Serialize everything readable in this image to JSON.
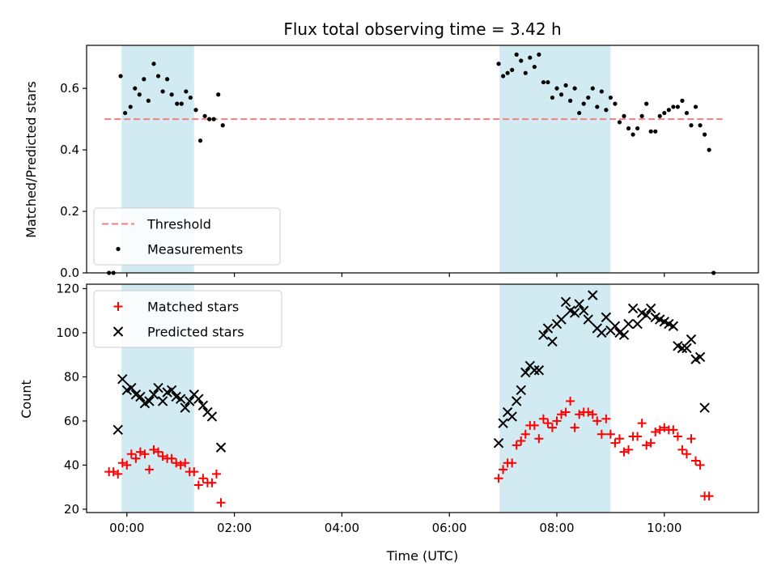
{
  "chart_data": [
    {
      "type": "scatter",
      "title": "Flux total observing time = 3.42 h",
      "xlabel": "",
      "ylabel": "Matched/Predicted stars",
      "x_unit": "UTC time",
      "xlim": [
        "23:15",
        "11:45"
      ],
      "ylim": [
        0,
        0.74
      ],
      "yticks": [
        0.0,
        0.2,
        0.4,
        0.6
      ],
      "ytick_labels": [
        "0.0",
        "0.2",
        "0.4",
        "0.6"
      ],
      "xticks": [
        "00:00",
        "02:00",
        "04:00",
        "06:00",
        "08:00",
        "10:00"
      ],
      "shaded_regions": [
        [
          "23:54",
          "01:15"
        ],
        [
          "06:56",
          "09:00"
        ]
      ],
      "shade_color": "#add8e6",
      "legend": "lower-left",
      "threshold": {
        "name": "Threshold",
        "value": 0.5,
        "x_range": [
          "23:35",
          "11:05"
        ],
        "color": "#f08080"
      },
      "series": [
        {
          "name": "Measurements",
          "color": "#000000",
          "marker": "dot",
          "points": [
            [
              "23:40",
              0.0
            ],
            [
              "23:45",
              0.0
            ],
            [
              "23:53",
              0.64
            ],
            [
              "23:58",
              0.52
            ],
            [
              "00:04",
              0.54
            ],
            [
              "00:09",
              0.6
            ],
            [
              "00:14",
              0.58
            ],
            [
              "00:19",
              0.63
            ],
            [
              "00:24",
              0.56
            ],
            [
              "00:30",
              0.68
            ],
            [
              "00:35",
              0.64
            ],
            [
              "00:40",
              0.59
            ],
            [
              "00:45",
              0.63
            ],
            [
              "00:50",
              0.58
            ],
            [
              "00:56",
              0.55
            ],
            [
              "01:01",
              0.55
            ],
            [
              "01:06",
              0.59
            ],
            [
              "01:11",
              0.57
            ],
            [
              "01:17",
              0.53
            ],
            [
              "01:22",
              0.43
            ],
            [
              "01:27",
              0.51
            ],
            [
              "01:32",
              0.5
            ],
            [
              "01:37",
              0.5
            ],
            [
              "01:42",
              0.58
            ],
            [
              "01:47",
              0.48
            ],
            [
              "06:55",
              0.68
            ],
            [
              "07:00",
              0.64
            ],
            [
              "07:05",
              0.65
            ],
            [
              "07:10",
              0.66
            ],
            [
              "07:15",
              0.71
            ],
            [
              "07:20",
              0.69
            ],
            [
              "07:25",
              0.65
            ],
            [
              "07:30",
              0.7
            ],
            [
              "07:35",
              0.67
            ],
            [
              "07:40",
              0.71
            ],
            [
              "07:45",
              0.62
            ],
            [
              "07:50",
              0.62
            ],
            [
              "07:55",
              0.57
            ],
            [
              "08:00",
              0.6
            ],
            [
              "08:05",
              0.58
            ],
            [
              "08:10",
              0.61
            ],
            [
              "08:15",
              0.56
            ],
            [
              "08:20",
              0.6
            ],
            [
              "08:25",
              0.52
            ],
            [
              "08:30",
              0.55
            ],
            [
              "08:35",
              0.57
            ],
            [
              "08:40",
              0.6
            ],
            [
              "08:45",
              0.54
            ],
            [
              "08:50",
              0.59
            ],
            [
              "08:55",
              0.53
            ],
            [
              "09:00",
              0.57
            ],
            [
              "09:05",
              0.55
            ],
            [
              "09:10",
              0.49
            ],
            [
              "09:15",
              0.51
            ],
            [
              "09:20",
              0.47
            ],
            [
              "09:25",
              0.45
            ],
            [
              "09:30",
              0.47
            ],
            [
              "09:35",
              0.51
            ],
            [
              "09:40",
              0.55
            ],
            [
              "09:45",
              0.46
            ],
            [
              "09:50",
              0.46
            ],
            [
              "09:55",
              0.51
            ],
            [
              "10:00",
              0.52
            ],
            [
              "10:05",
              0.53
            ],
            [
              "10:10",
              0.54
            ],
            [
              "10:15",
              0.54
            ],
            [
              "10:20",
              0.56
            ],
            [
              "10:25",
              0.52
            ],
            [
              "10:30",
              0.48
            ],
            [
              "10:35",
              0.54
            ],
            [
              "10:40",
              0.48
            ],
            [
              "10:45",
              0.45
            ],
            [
              "10:50",
              0.4
            ],
            [
              "10:55",
              0.0
            ]
          ]
        }
      ]
    },
    {
      "type": "scatter",
      "title": "",
      "xlabel": "Time (UTC)",
      "ylabel": "Count",
      "x_unit": "UTC time",
      "xlim": [
        "23:15",
        "11:45"
      ],
      "ylim": [
        18.5,
        122
      ],
      "yticks": [
        20,
        40,
        60,
        80,
        100,
        120
      ],
      "ytick_labels": [
        "20",
        "40",
        "60",
        "80",
        "100",
        "120"
      ],
      "xticks": [
        "00:00",
        "02:00",
        "04:00",
        "06:00",
        "08:00",
        "10:00"
      ],
      "xtick_labels": [
        "00:00",
        "02:00",
        "04:00",
        "06:00",
        "08:00",
        "10:00"
      ],
      "shaded_regions": [
        [
          "23:54",
          "01:15"
        ],
        [
          "06:56",
          "09:00"
        ]
      ],
      "shade_color": "#add8e6",
      "legend": "upper-left",
      "series": [
        {
          "name": "Matched stars",
          "color": "#ff0000",
          "marker": "plus",
          "points": [
            [
              "23:40",
              37
            ],
            [
              "23:45",
              37
            ],
            [
              "23:50",
              36
            ],
            [
              "23:55",
              41
            ],
            [
              "00:00",
              40
            ],
            [
              "00:05",
              45
            ],
            [
              "00:10",
              43
            ],
            [
              "00:15",
              46
            ],
            [
              "00:20",
              45
            ],
            [
              "00:25",
              38
            ],
            [
              "00:30",
              47
            ],
            [
              "00:35",
              46
            ],
            [
              "00:40",
              44
            ],
            [
              "00:45",
              43
            ],
            [
              "00:50",
              43
            ],
            [
              "00:55",
              41
            ],
            [
              "01:00",
              40
            ],
            [
              "01:05",
              41
            ],
            [
              "01:10",
              37
            ],
            [
              "01:15",
              37
            ],
            [
              "01:20",
              31
            ],
            [
              "01:25",
              34
            ],
            [
              "01:30",
              32
            ],
            [
              "01:35",
              32
            ],
            [
              "01:40",
              36
            ],
            [
              "01:45",
              23
            ],
            [
              "06:55",
              34
            ],
            [
              "07:00",
              38
            ],
            [
              "07:05",
              41
            ],
            [
              "07:10",
              41
            ],
            [
              "07:15",
              49
            ],
            [
              "07:20",
              51
            ],
            [
              "07:25",
              54
            ],
            [
              "07:30",
              58
            ],
            [
              "07:35",
              58
            ],
            [
              "07:40",
              52
            ],
            [
              "07:45",
              61
            ],
            [
              "07:50",
              59
            ],
            [
              "07:55",
              57
            ],
            [
              "08:00",
              60
            ],
            [
              "08:05",
              63
            ],
            [
              "08:10",
              64
            ],
            [
              "08:15",
              69
            ],
            [
              "08:20",
              57
            ],
            [
              "08:25",
              63
            ],
            [
              "08:30",
              64
            ],
            [
              "08:35",
              64
            ],
            [
              "08:40",
              63
            ],
            [
              "08:45",
              60
            ],
            [
              "08:50",
              54
            ],
            [
              "08:55",
              61
            ],
            [
              "09:00",
              54
            ],
            [
              "09:05",
              50
            ],
            [
              "09:10",
              52
            ],
            [
              "09:15",
              46
            ],
            [
              "09:20",
              47
            ],
            [
              "09:25",
              53
            ],
            [
              "09:30",
              53
            ],
            [
              "09:35",
              59
            ],
            [
              "09:40",
              49
            ],
            [
              "09:45",
              50
            ],
            [
              "09:50",
              55
            ],
            [
              "09:55",
              56
            ],
            [
              "10:00",
              57
            ],
            [
              "10:05",
              56
            ],
            [
              "10:10",
              56
            ],
            [
              "10:15",
              53
            ],
            [
              "10:20",
              47
            ],
            [
              "10:25",
              45
            ],
            [
              "10:30",
              52
            ],
            [
              "10:35",
              42
            ],
            [
              "10:40",
              40
            ],
            [
              "10:45",
              26
            ],
            [
              "10:50",
              26
            ]
          ]
        },
        {
          "name": "Predicted stars",
          "color": "#000000",
          "marker": "x",
          "points": [
            [
              "23:50",
              56
            ],
            [
              "23:55",
              79
            ],
            [
              "00:00",
              74
            ],
            [
              "00:05",
              75
            ],
            [
              "00:10",
              72
            ],
            [
              "00:15",
              71
            ],
            [
              "00:20",
              68
            ],
            [
              "00:25",
              69
            ],
            [
              "00:30",
              72
            ],
            [
              "00:35",
              75
            ],
            [
              "00:40",
              69
            ],
            [
              "00:45",
              73
            ],
            [
              "00:50",
              74
            ],
            [
              "00:55",
              71
            ],
            [
              "01:00",
              70
            ],
            [
              "01:05",
              66
            ],
            [
              "01:10",
              69
            ],
            [
              "01:15",
              72
            ],
            [
              "01:20",
              70
            ],
            [
              "01:25",
              67
            ],
            [
              "01:30",
              64
            ],
            [
              "01:35",
              62
            ],
            [
              "01:45",
              48
            ],
            [
              "06:55",
              50
            ],
            [
              "07:00",
              59
            ],
            [
              "07:05",
              64
            ],
            [
              "07:10",
              62
            ],
            [
              "07:15",
              69
            ],
            [
              "07:20",
              74
            ],
            [
              "07:25",
              82
            ],
            [
              "07:30",
              85
            ],
            [
              "07:35",
              83
            ],
            [
              "07:40",
              83
            ],
            [
              "07:45",
              99
            ],
            [
              "07:50",
              102
            ],
            [
              "07:55",
              96
            ],
            [
              "08:00",
              104
            ],
            [
              "08:05",
              106
            ],
            [
              "08:10",
              114
            ],
            [
              "08:15",
              110
            ],
            [
              "08:20",
              109
            ],
            [
              "08:25",
              113
            ],
            [
              "08:30",
              110
            ],
            [
              "08:35",
              106
            ],
            [
              "08:40",
              117
            ],
            [
              "08:45",
              102
            ],
            [
              "08:50",
              100
            ],
            [
              "08:55",
              107
            ],
            [
              "09:00",
              101
            ],
            [
              "09:05",
              103
            ],
            [
              "09:10",
              100
            ],
            [
              "09:15",
              99
            ],
            [
              "09:20",
              104
            ],
            [
              "09:25",
              111
            ],
            [
              "09:30",
              104
            ],
            [
              "09:35",
              109
            ],
            [
              "09:40",
              108
            ],
            [
              "09:45",
              111
            ],
            [
              "09:50",
              107
            ],
            [
              "09:55",
              106
            ],
            [
              "10:00",
              105
            ],
            [
              "10:05",
              104
            ],
            [
              "10:10",
              103
            ],
            [
              "10:15",
              94
            ],
            [
              "10:20",
              93
            ],
            [
              "10:25",
              93
            ],
            [
              "10:30",
              97
            ],
            [
              "10:35",
              88
            ],
            [
              "10:40",
              89
            ],
            [
              "10:45",
              66
            ]
          ]
        }
      ]
    }
  ]
}
